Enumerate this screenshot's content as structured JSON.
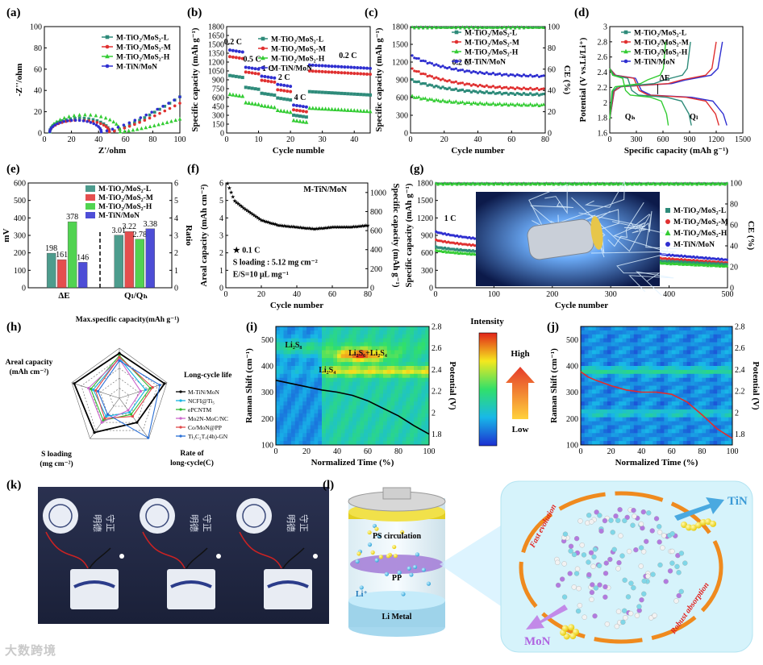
{
  "figure": {
    "colors": {
      "L": "#2e8b7a",
      "M": "#e03030",
      "H": "#33cc33",
      "N": "#2f2fd0",
      "black": "#000000"
    },
    "series_names": {
      "L": "M-TiO₂/MoS₂-L",
      "M": "M-TiO₂/MoS₂-M",
      "H": "M-TiO₂/MoS₂-H",
      "N": "M-TiN/MoN"
    },
    "panels": {
      "a": {
        "label": "(a)",
        "xlabel": "Z'/ohm",
        "ylabel": "-Z''/ohm"
      },
      "b": {
        "label": "(b)",
        "xlabel": "Cycle numble",
        "ylabel": "Specific capacity (mAh g⁻¹)",
        "rates": [
          "0.2 C",
          "0.5 C",
          "1 C",
          "2 C",
          "4 C",
          "0.2 C"
        ]
      },
      "c": {
        "label": "(c)",
        "xlabel": "Cycle number",
        "ylabel": "Specific capacity (mAh g⁻¹)",
        "y2label": "CE (%)",
        "rate": "0.2 C"
      },
      "d": {
        "label": "(d)",
        "xlabel": "Specific capacity (mAh g⁻¹)",
        "ylabel": "Potential (V vs.Li/Li⁺)",
        "dE": "ΔE",
        "qh": "Qₕ",
        "ql": "Qₗ"
      },
      "e": {
        "label": "(e)",
        "ylabel": "mV",
        "y2label": "Ratio",
        "xcats": [
          "ΔE",
          "Qₗ/Qₕ"
        ]
      },
      "f": {
        "label": "(f)",
        "title": "M-TiN/MoN",
        "xlabel": "Cycle number",
        "ylabel": "Areal capacity (mAh cm⁻²)",
        "y2label": "Specific capacity (mAh g⁻¹)",
        "notes": [
          "★ 0.1 C",
          "S loading : 5.12 mg cm⁻²",
          "E/S=10 μL mg⁻¹"
        ]
      },
      "g": {
        "label": "(g)",
        "xlabel": "Cycle number",
        "ylabel": "Specific capacity (mAh g⁻¹)",
        "y2label": "CE (%)",
        "rate": "1 C"
      },
      "h": {
        "label": "(h)",
        "axes": [
          "Max.specific capacity(mAh g⁻¹)",
          "Long-cycle life",
          "Rate of long-cycle(C)",
          "S loading (mg cm⁻²)",
          "Areal capacity (mAh cm⁻²)"
        ],
        "legend": [
          "M-TiN/MoN",
          "NCFI@Ti₅",
          "ePCNTM",
          "Mo2N-MoC/NC",
          "Co/MoN@PP",
          "Ti₃C₂Tₓ(4h)-GN"
        ]
      },
      "i": {
        "label": "(i)",
        "xlabel": "Normalized Time (%)",
        "ylabel": "Raman Shift (cm⁻¹)",
        "y2label": "Potential (V)",
        "peaks": [
          "Li₂S₈",
          "Li₂S₆+Li₂S₄",
          "Li₂S₄"
        ]
      },
      "j": {
        "label": "(j)",
        "xlabel": "Normalized Time (%)",
        "ylabel": "Raman Shift (cm⁻¹)",
        "y2label": "Potential (V)"
      },
      "k": {
        "label": "(k)"
      },
      "l": {
        "label": "(l)",
        "ps": "PS circulation",
        "pp": "PP",
        "li": "Li⁺",
        "metal": "Li Metal",
        "tin": "TiN",
        "mon": "MoN",
        "fast": "Fast evolution",
        "robust": "Robust absorption"
      }
    },
    "colorbar": {
      "title": "Intensity",
      "high": "High",
      "low": "Low"
    },
    "watermark": "大数跨境"
  },
  "chart_data": [
    {
      "type": "scatter",
      "panel": "a",
      "xlim": [
        0,
        100
      ],
      "ylim": [
        0,
        100
      ],
      "xticks": [
        0,
        20,
        40,
        60,
        80,
        100
      ],
      "yticks": [
        0,
        20,
        40,
        60,
        80,
        100
      ],
      "series": [
        {
          "name": "M-TiO₂/MoS₂-L",
          "semicircle_end": 48,
          "arc_peak": 13,
          "tail_end": [
            100,
            34
          ]
        },
        {
          "name": "M-TiO₂/MoS₂-M",
          "semicircle_end": 48,
          "arc_peak": 11,
          "tail_end": [
            100,
            28
          ]
        },
        {
          "name": "M-TiO₂/MoS₂-H",
          "semicircle_end": 56,
          "arc_peak": 16,
          "tail_end": [
            100,
            13
          ]
        },
        {
          "name": "M-TiN/MoN",
          "semicircle_end": 42,
          "arc_peak": 11,
          "tail_end": [
            100,
            34
          ]
        }
      ]
    },
    {
      "type": "scatter",
      "panel": "b",
      "xlim": [
        0,
        45
      ],
      "ylim": [
        0,
        1800
      ],
      "xticks": [
        0,
        10,
        20,
        30,
        40
      ],
      "yticks": [
        0,
        150,
        300,
        450,
        600,
        750,
        900,
        1050,
        1200,
        1350,
        1500,
        1650,
        1800
      ],
      "segments_cycles": [
        [
          1,
          5
        ],
        [
          6,
          10
        ],
        [
          11,
          15
        ],
        [
          16,
          20
        ],
        [
          21,
          25
        ],
        [
          26,
          45
        ]
      ],
      "series": [
        {
          "name": "M-TiN/MoN",
          "values": [
            1370,
            1080,
            930,
            790,
            440,
            1150
          ]
        },
        {
          "name": "M-TiO₂/MoS₂-M",
          "values": [
            1260,
            1000,
            860,
            700,
            360,
            1050
          ]
        },
        {
          "name": "M-TiO₂/MoS₂-L",
          "values": [
            940,
            740,
            640,
            560,
            270,
            700
          ]
        },
        {
          "name": "M-TiO₂/MoS₂-H",
          "values": [
            620,
            480,
            430,
            350,
            180,
            420
          ]
        }
      ]
    },
    {
      "type": "scatter",
      "panel": "c",
      "xlim": [
        0,
        80
      ],
      "ylim": [
        0,
        1800
      ],
      "y2lim": [
        0,
        100
      ],
      "xticks": [
        0,
        20,
        40,
        60,
        80
      ],
      "yticks": [
        0,
        300,
        600,
        900,
        1200,
        1500,
        1800
      ],
      "y2ticks": [
        0,
        20,
        40,
        60,
        80,
        100
      ],
      "series": [
        {
          "name": "M-TiN/MoN",
          "start": 1310,
          "end": 960
        },
        {
          "name": "M-TiO₂/MoS₂-M",
          "start": 1090,
          "end": 740
        },
        {
          "name": "M-TiO₂/MoS₂-L",
          "start": 900,
          "end": 650
        },
        {
          "name": "M-TiO₂/MoS₂-H",
          "start": 620,
          "end": 470
        }
      ],
      "ce_percent": 99
    },
    {
      "type": "line",
      "panel": "d",
      "xlim": [
        0,
        1500
      ],
      "ylim": [
        1.6,
        3.0
      ],
      "xticks": [
        0,
        300,
        600,
        900,
        1200,
        1500
      ],
      "yticks": [
        1.6,
        1.8,
        2.0,
        2.2,
        2.4,
        2.6,
        2.8,
        3.0
      ],
      "series": [
        {
          "name": "M-TiN/MoN",
          "discharge_capacity": 1320,
          "charge_capacity": 1270
        },
        {
          "name": "M-TiO₂/MoS₂-M",
          "discharge_capacity": 1230,
          "charge_capacity": 1200
        },
        {
          "name": "M-TiO₂/MoS₂-L",
          "discharge_capacity": 920,
          "charge_capacity": 910
        },
        {
          "name": "M-TiO₂/MoS₂-H",
          "discharge_capacity": 660,
          "charge_capacity": 630
        }
      ]
    },
    {
      "type": "bar",
      "panel": "e",
      "ylim": [
        0,
        600
      ],
      "y2lim": [
        0,
        6
      ],
      "yticks": [
        0,
        100,
        200,
        300,
        400,
        500,
        600
      ],
      "y2ticks": [
        0,
        1,
        2,
        3,
        4,
        5,
        6
      ],
      "series": [
        {
          "name": "M-TiO₂/MoS₂-L",
          "dE": 198,
          "ratio": 3.01
        },
        {
          "name": "M-TiO₂/MoS₂-M",
          "dE": 161,
          "ratio": 3.22
        },
        {
          "name": "M-TiO₂/MoS₂-H",
          "dE": 378,
          "ratio": 2.78
        },
        {
          "name": "M-TiN/MoN",
          "dE": 146,
          "ratio": 3.38
        }
      ]
    },
    {
      "type": "scatter",
      "panel": "f",
      "xlim": [
        0,
        80
      ],
      "ylim": [
        0,
        6
      ],
      "y2lim": [
        0,
        1100
      ],
      "xticks": [
        0,
        20,
        40,
        60,
        80
      ],
      "yticks": [
        0,
        1,
        2,
        3,
        4,
        5,
        6
      ],
      "y2ticks": [
        0,
        200,
        400,
        600,
        800,
        1000
      ],
      "series": [
        {
          "name": "M-TiN/MoN",
          "x": [
            1,
            5,
            10,
            20,
            30,
            40,
            50,
            60,
            70,
            80
          ],
          "y": [
            6.0,
            5.0,
            4.6,
            3.9,
            3.6,
            3.5,
            3.4,
            3.5,
            3.5,
            3.6
          ]
        }
      ]
    },
    {
      "type": "scatter",
      "panel": "g",
      "xlim": [
        0,
        500
      ],
      "ylim": [
        0,
        1800
      ],
      "y2lim": [
        0,
        100
      ],
      "xticks": [
        0,
        100,
        200,
        300,
        400,
        500
      ],
      "yticks": [
        0,
        300,
        600,
        900,
        1200,
        1500,
        1800
      ],
      "y2ticks": [
        0,
        20,
        40,
        60,
        80,
        100
      ],
      "series": [
        {
          "name": "M-TiN/MoN",
          "start": 960,
          "end": 480
        },
        {
          "name": "M-TiO₂/MoS₂-M",
          "start": 820,
          "end": 430
        },
        {
          "name": "M-TiO₂/MoS₂-L",
          "start": 700,
          "end": 400
        },
        {
          "name": "M-TiO₂/MoS₂-H",
          "start": 640,
          "end": 370
        }
      ],
      "ce_percent": 100
    },
    {
      "type": "radar",
      "panel": "h",
      "axes": [
        "Max.specific capacity",
        "Long-cycle life",
        "Rate of long-cycle",
        "S loading",
        "Areal capacity"
      ],
      "series": [
        {
          "name": "M-TiN/MoN",
          "values": [
            0.9,
            0.95,
            0.6,
            0.85,
            0.95
          ]
        },
        {
          "name": "NCFI@Ti₅",
          "values": [
            0.8,
            0.55,
            0.35,
            0.45,
            0.55
          ]
        },
        {
          "name": "ePCNTM",
          "values": [
            0.85,
            0.65,
            0.4,
            0.55,
            0.6
          ]
        },
        {
          "name": "Mo2N-MoC/NC",
          "values": [
            0.78,
            0.45,
            0.3,
            0.6,
            0.65
          ]
        },
        {
          "name": "Co/MoN@PP",
          "values": [
            0.82,
            0.7,
            0.45,
            0.5,
            0.5
          ]
        },
        {
          "name": "Ti₃C₂Tₓ(4h)-GN",
          "values": [
            0.75,
            0.85,
            0.98,
            0.4,
            0.45
          ]
        }
      ]
    },
    {
      "type": "heatmap",
      "panel": "i",
      "xlim": [
        0,
        100
      ],
      "ylim": [
        100,
        550
      ],
      "y2lim": [
        1.7,
        2.8
      ],
      "xticks": [
        0,
        20,
        40,
        60,
        80,
        100
      ],
      "yticks": [
        100,
        200,
        300,
        400,
        500
      ],
      "y2ticks": [
        1.8,
        2.0,
        2.2,
        2.4,
        2.6,
        2.8
      ],
      "potential_curve": {
        "x": [
          0,
          10,
          20,
          30,
          40,
          50,
          60,
          70,
          80,
          90,
          100
        ],
        "y": [
          2.3,
          2.27,
          2.24,
          2.21,
          2.19,
          2.16,
          2.11,
          2.04,
          1.97,
          1.88,
          1.8
        ]
      }
    },
    {
      "type": "heatmap",
      "panel": "j",
      "xlim": [
        0,
        100
      ],
      "ylim": [
        100,
        550
      ],
      "y2lim": [
        1.7,
        2.8
      ],
      "xticks": [
        0,
        20,
        40,
        60,
        80,
        100
      ],
      "yticks": [
        100,
        200,
        300,
        400,
        500
      ],
      "y2ticks": [
        1.8,
        2.0,
        2.2,
        2.4,
        2.6,
        2.8
      ],
      "potential_curve": {
        "x": [
          0,
          5,
          10,
          20,
          30,
          40,
          50,
          60,
          70,
          80,
          90,
          100
        ],
        "y": [
          2.38,
          2.33,
          2.3,
          2.25,
          2.21,
          2.19,
          2.19,
          2.17,
          2.1,
          1.98,
          1.85,
          1.76
        ]
      }
    }
  ]
}
